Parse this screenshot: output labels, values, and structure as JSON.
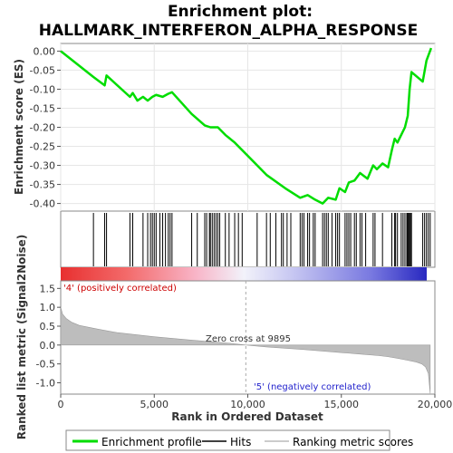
{
  "chart_data": {
    "type": "line",
    "title_line1": "Enrichment plot:",
    "title_line2": "HALLMARK_INTERFERON_ALPHA_RESPONSE",
    "xlabel": "Rank in Ordered Dataset",
    "ylabel_top": "Enrichment score (ES)",
    "ylabel_bottom": "Ranked list metric (Signal2Noise)",
    "xlim": [
      0,
      20000
    ],
    "x_ticks": [
      "0",
      "5,000",
      "10,000",
      "15,000",
      "20,000"
    ],
    "x_tick_values": [
      0,
      5000,
      10000,
      15000,
      20000
    ],
    "es_ylim": [
      -0.42,
      0.02
    ],
    "es_y_ticks": [
      "0.00",
      "-0.05",
      "-0.10",
      "-0.15",
      "-0.20",
      "-0.25",
      "-0.30",
      "-0.35",
      "-0.40"
    ],
    "es_y_tick_values": [
      0.0,
      -0.05,
      -0.1,
      -0.15,
      -0.2,
      -0.25,
      -0.3,
      -0.35,
      -0.4
    ],
    "metric_ylim": [
      -1.3,
      1.7
    ],
    "metric_y_ticks": [
      "1.5",
      "1.0",
      "0.5",
      "0.0",
      "-0.5",
      "-1.0"
    ],
    "metric_y_tick_values": [
      1.5,
      1.0,
      0.5,
      0.0,
      -0.5,
      -1.0
    ],
    "zero_cross_label": "Zero cross at 9895",
    "zero_cross_rank": 9895,
    "pos_label": "'4' (positively correlated)",
    "neg_label": "'5' (negatively correlated)",
    "series": [
      {
        "name": "Enrichment profile",
        "color": "#00dd00",
        "x": [
          0,
          1750,
          2350,
          2450,
          3700,
          3850,
          4100,
          4400,
          4650,
          4900,
          5100,
          5450,
          5750,
          5950,
          7000,
          7700,
          8000,
          8400,
          8800,
          9300,
          10000,
          11000,
          12000,
          12800,
          13200,
          13600,
          14000,
          14300,
          14700,
          14900,
          15200,
          15400,
          15700,
          16000,
          16400,
          16700,
          16900,
          17200,
          17500,
          17700,
          17850,
          18000,
          18200,
          18400,
          18550,
          18650,
          18750,
          19350,
          19550,
          19800
        ],
        "y": [
          0.0,
          -0.068,
          -0.09,
          -0.064,
          -0.12,
          -0.11,
          -0.13,
          -0.12,
          -0.13,
          -0.12,
          -0.115,
          -0.12,
          -0.112,
          -0.108,
          -0.165,
          -0.195,
          -0.2,
          -0.2,
          -0.22,
          -0.24,
          -0.275,
          -0.325,
          -0.36,
          -0.385,
          -0.378,
          -0.39,
          -0.4,
          -0.385,
          -0.39,
          -0.36,
          -0.37,
          -0.345,
          -0.34,
          -0.32,
          -0.335,
          -0.3,
          -0.31,
          -0.295,
          -0.305,
          -0.26,
          -0.23,
          -0.24,
          -0.22,
          -0.2,
          -0.17,
          -0.1,
          -0.055,
          -0.08,
          -0.025,
          0.008
        ]
      }
    ],
    "hits": [
      1750,
      2350,
      2450,
      3700,
      3850,
      4400,
      4650,
      4800,
      4900,
      5000,
      5100,
      5300,
      5450,
      5600,
      5750,
      5850,
      5950,
      7000,
      7300,
      7700,
      7800,
      7950,
      8000,
      8100,
      8200,
      8300,
      8400,
      8500,
      8800,
      9000,
      9300,
      9500,
      9700,
      10500,
      11000,
      11200,
      11500,
      11800,
      11900,
      12100,
      12300,
      12800,
      12900,
      13000,
      13200,
      13300,
      13500,
      13600,
      14000,
      14100,
      14200,
      14300,
      14500,
      14700,
      14800,
      14900,
      15200,
      15300,
      15400,
      15500,
      15700,
      15800,
      16000,
      16100,
      16300,
      16700,
      16800,
      17200,
      17700,
      17850,
      17900,
      18000,
      18200,
      18300,
      18400,
      18500,
      18550,
      18600,
      18650,
      18700,
      18750,
      19350,
      19450,
      19550,
      19650,
      19750
    ],
    "metric_profile": {
      "x": [
        0,
        100,
        300,
        600,
        1000,
        2000,
        3000,
        5000,
        7000,
        9000,
        9895,
        11000,
        13000,
        15000,
        16000,
        17000,
        17500,
        18000,
        18500,
        19000,
        19300,
        19500,
        19650,
        19750
      ],
      "y": [
        1.0,
        0.82,
        0.7,
        0.6,
        0.52,
        0.42,
        0.33,
        0.22,
        0.13,
        0.05,
        0.0,
        -0.05,
        -0.12,
        -0.2,
        -0.24,
        -0.28,
        -0.31,
        -0.35,
        -0.4,
        -0.45,
        -0.5,
        -0.58,
        -0.75,
        -1.28
      ]
    },
    "legend": [
      "Enrichment profile",
      "Hits",
      "Ranking metric scores"
    ]
  }
}
